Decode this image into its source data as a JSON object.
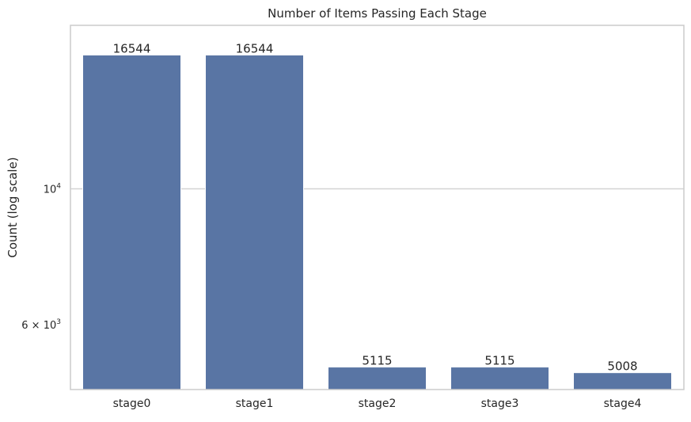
{
  "chart_data": {
    "type": "bar",
    "title": "Number of Items Passing Each Stage",
    "xlabel": "",
    "ylabel": "Count (log scale)",
    "yscale": "log",
    "ylim": [
      4700,
      18500
    ],
    "categories": [
      "stage0",
      "stage1",
      "stage2",
      "stage3",
      "stage4"
    ],
    "values": [
      16544,
      16544,
      5115,
      5115,
      5008
    ],
    "data_labels": [
      "16544",
      "16544",
      "5115",
      "5115",
      "5008"
    ],
    "y_ticks": [
      {
        "value": 10000,
        "base": "10",
        "exponent": "4"
      },
      {
        "value": 6000,
        "base": "6 × 10",
        "exponent": "3"
      }
    ],
    "grid": "horizontal major",
    "legend": "none",
    "colors": {
      "bar": "#5975a4",
      "grid": "#d3d3d3",
      "frame": "#cccccc",
      "text": "#262626"
    }
  }
}
